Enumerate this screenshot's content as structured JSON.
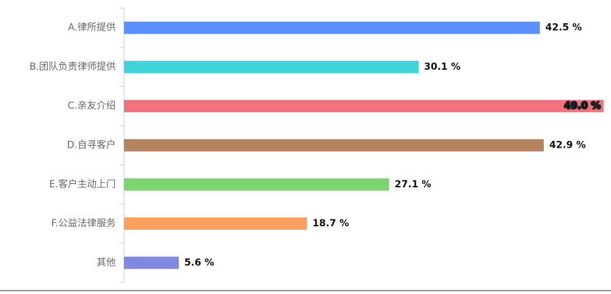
{
  "chart_data": {
    "type": "hbar",
    "categories": [
      "A.律所提供",
      "B.团队负责律师提供",
      "C.亲友介绍",
      "D.自寻客户",
      "E.客户主动上门",
      "F.公益法律服务",
      "其他"
    ],
    "values": [
      42.5,
      30.1,
      49.0,
      42.9,
      27.1,
      18.7,
      5.6
    ],
    "value_labels": [
      "42.5 %",
      "30.1 %",
      "49.0 %",
      "42.9 %",
      "27.1 %",
      "18.7 %",
      "5.6 %"
    ],
    "colors": [
      "#5b8ff9",
      "#40d4dd",
      "#f2727b",
      "#b5835f",
      "#7bd672",
      "#fe9f5f",
      "#8088e6"
    ],
    "xlim": [
      0,
      49
    ]
  }
}
